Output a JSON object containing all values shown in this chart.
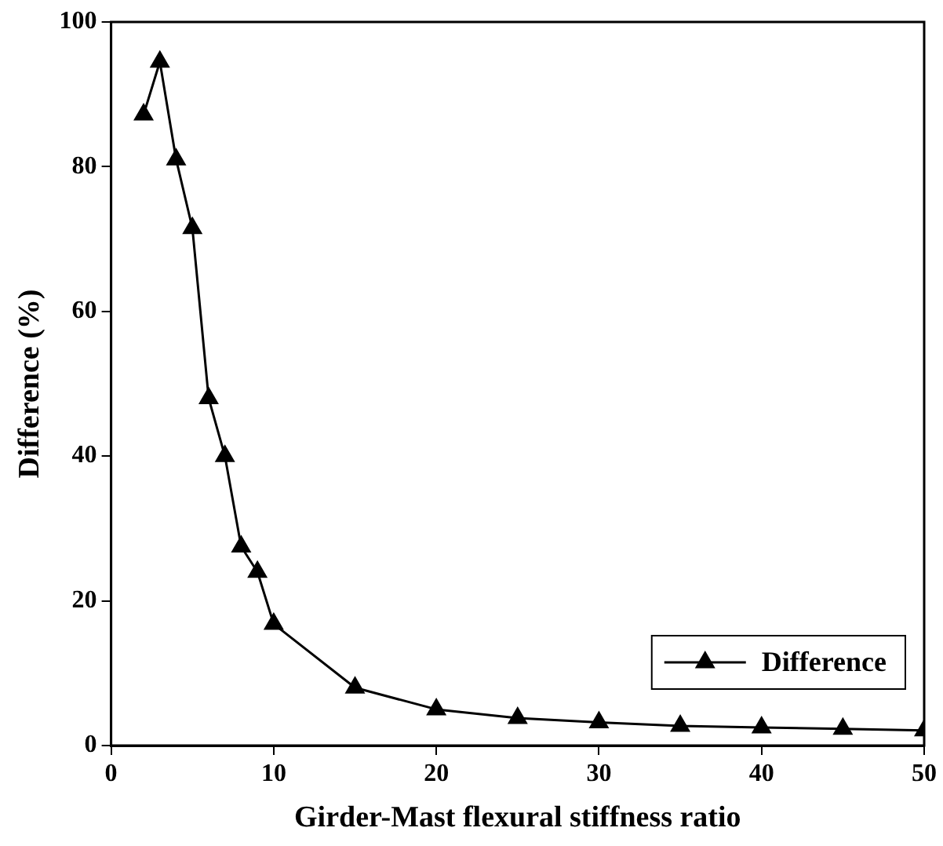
{
  "chart_data": {
    "type": "line",
    "xlabel": "Girder-Mast flexural stiffness ratio",
    "ylabel": "Difference (%)",
    "x": [
      2,
      3,
      4,
      5,
      6,
      7,
      8,
      9,
      10,
      15,
      20,
      25,
      30,
      35,
      40,
      45,
      50
    ],
    "series": [
      {
        "name": "Difference",
        "color": "#000000",
        "values": [
          87.2,
          94.5,
          81,
          71.5,
          48,
          40,
          27.5,
          24,
          16.8,
          8,
          5,
          3.8,
          3.2,
          2.7,
          2.5,
          2.3,
          2.1
        ]
      }
    ],
    "xlim": [
      0,
      50
    ],
    "xticks": [
      0,
      10,
      20,
      30,
      40,
      50
    ],
    "ylim": [
      0,
      100
    ],
    "yticks": [
      0,
      20,
      40,
      60,
      80,
      100
    ],
    "grid": false,
    "legend": "bottom right",
    "marker": "triangle",
    "line_style": "solid"
  }
}
